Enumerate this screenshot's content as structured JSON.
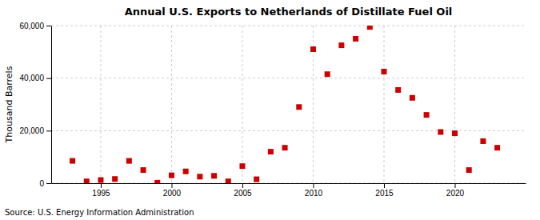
{
  "chart_data": {
    "type": "scatter",
    "title": "Annual U.S. Exports to Netherlands of Distillate Fuel Oil",
    "y_label": "Thousand Barrels",
    "annotation": "Source: U.S. Energy Information Administration",
    "x": [
      1993,
      1994,
      1995,
      1996,
      1997,
      1998,
      1999,
      2000,
      2001,
      2002,
      2003,
      2004,
      2005,
      2006,
      2007,
      2008,
      2009,
      2010,
      2011,
      2012,
      2013,
      2014,
      2015,
      2016,
      2017,
      2018,
      2019,
      2020,
      2021,
      2022,
      2023
    ],
    "values": [
      8500,
      700,
      1200,
      1600,
      8500,
      5000,
      200,
      3000,
      4500,
      2500,
      2800,
      700,
      6500,
      1500,
      12000,
      13500,
      29000,
      51000,
      41500,
      52500,
      55000,
      59500,
      42500,
      35500,
      32500,
      26000,
      19500,
      19000,
      5000,
      16000,
      13500
    ],
    "color": "#cc0000",
    "marker": "square",
    "grid": true,
    "xlim": [
      1991.5,
      2025
    ],
    "xticks": [
      1995,
      2000,
      2005,
      2010,
      2015,
      2020
    ],
    "ylim": [
      0,
      60000
    ],
    "yticks": [
      0,
      {
        "value": 20000,
        "label": "20,000"
      },
      {
        "value": 40000,
        "label": "40,000"
      },
      {
        "value": 60000,
        "label": "60,000"
      }
    ]
  }
}
